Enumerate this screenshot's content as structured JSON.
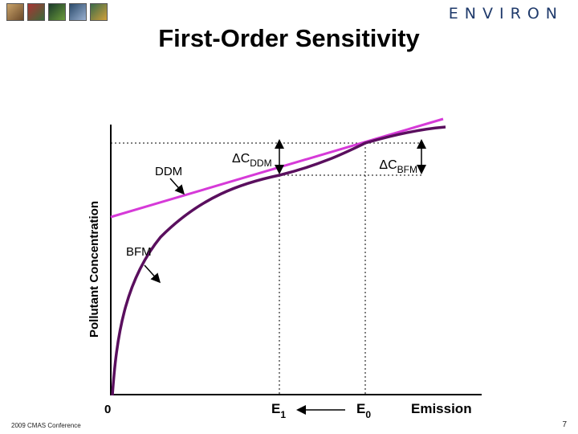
{
  "header": {
    "brand": "ENVIRON",
    "title": "First-Order Sensitivity",
    "logo_colors": [
      "#6b4a2a",
      "#3a6b3a",
      "#2a4a6b",
      "#4a5a7b",
      "#8a6a2a"
    ]
  },
  "footer": {
    "conference": "2009 CMAS Conference",
    "page_number": "7"
  },
  "diagram": {
    "ylabel": "Pollutant Concentration",
    "x_zero": "0",
    "x_e1_main": "E",
    "x_e1_sub": "1",
    "x_e0_main": "E",
    "x_e0_sub": "0",
    "x_emission": "Emission",
    "ddm_label": "DDM",
    "bfm_label": "BFM",
    "delta_c_ddm_main": "ΔC",
    "delta_c_ddm_sub": "DDM",
    "delta_c_bfm_main": "ΔC",
    "delta_c_bfm_sub": "BFM",
    "colors": {
      "curve": "#5a0f5e",
      "tangent": "#d63ad8",
      "axis": "#000000"
    }
  }
}
